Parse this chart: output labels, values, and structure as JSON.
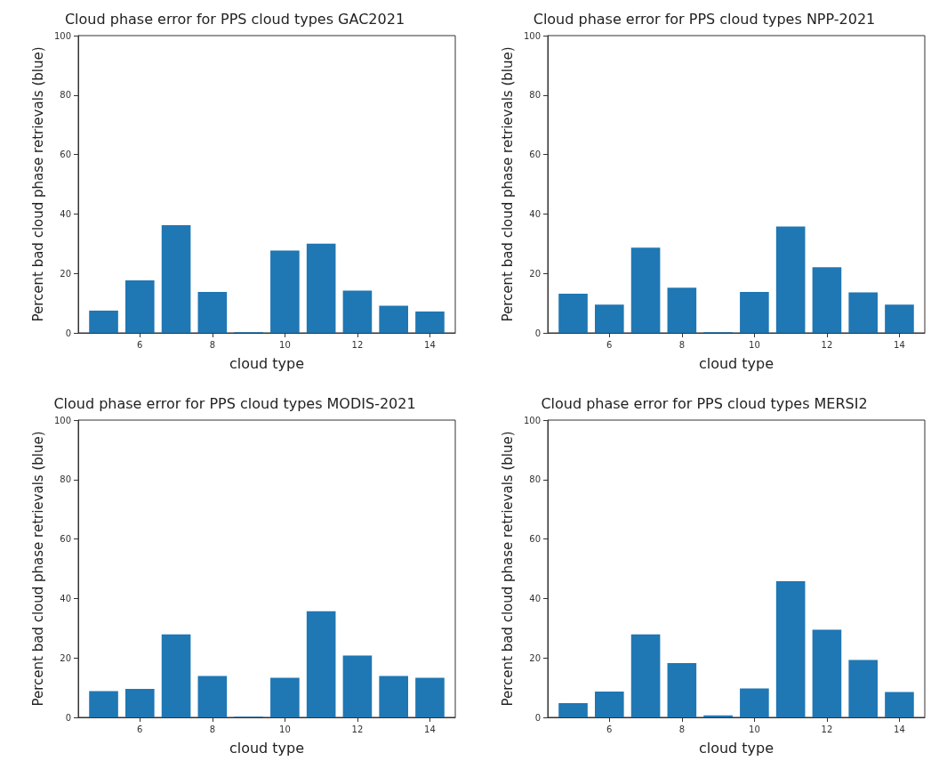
{
  "chart_data": [
    {
      "type": "bar",
      "title": "Cloud phase error for PPS cloud types GAC2021",
      "xlabel": "cloud type",
      "ylabel": "Percent bad cloud phase retrievals (blue)",
      "x": [
        5,
        6,
        7,
        8,
        9,
        10,
        11,
        12,
        13,
        14
      ],
      "values": [
        7.5,
        17.7,
        36.2,
        13.8,
        0.2,
        27.7,
        30,
        14.2,
        9.1,
        7.2
      ],
      "color": "#1f77b4",
      "xlim": [
        4.3,
        14.7
      ],
      "xticks": [
        6,
        8,
        10,
        12,
        14
      ],
      "ylim": [
        0,
        100
      ],
      "yticks": [
        0,
        20,
        40,
        60,
        80,
        100
      ],
      "grid": false
    },
    {
      "type": "bar",
      "title": "Cloud phase error for PPS cloud types NPP-2021",
      "xlabel": "cloud type",
      "ylabel": "Percent bad cloud phase retrievals (blue)",
      "x": [
        5,
        6,
        7,
        8,
        9,
        10,
        11,
        12,
        13,
        14
      ],
      "values": [
        13.2,
        9.5,
        28.7,
        15.2,
        0.2,
        13.8,
        35.8,
        22.1,
        13.6,
        9.5
      ],
      "color": "#1f77b4",
      "xlim": [
        4.3,
        14.7
      ],
      "xticks": [
        6,
        8,
        10,
        12,
        14
      ],
      "ylim": [
        0,
        100
      ],
      "yticks": [
        0,
        20,
        40,
        60,
        80,
        100
      ],
      "grid": false
    },
    {
      "type": "bar",
      "title": "Cloud phase error for PPS cloud types MODIS-2021",
      "xlabel": "cloud type",
      "ylabel": "Percent bad cloud phase retrievals (blue)",
      "x": [
        5,
        6,
        7,
        8,
        9,
        10,
        11,
        12,
        13,
        14
      ],
      "values": [
        8.8,
        9.6,
        27.9,
        13.9,
        0.2,
        13.3,
        35.7,
        20.8,
        13.9,
        13.3
      ],
      "color": "#1f77b4",
      "xlim": [
        4.3,
        14.7
      ],
      "xticks": [
        6,
        8,
        10,
        12,
        14
      ],
      "ylim": [
        0,
        100
      ],
      "yticks": [
        0,
        20,
        40,
        60,
        80,
        100
      ],
      "grid": false
    },
    {
      "type": "bar",
      "title": "Cloud phase error for PPS cloud types MERSI2",
      "xlabel": "cloud type",
      "ylabel": "Percent bad cloud phase retrievals (blue)",
      "x": [
        5,
        6,
        7,
        8,
        9,
        10,
        11,
        12,
        13,
        14
      ],
      "values": [
        4.8,
        8.7,
        27.9,
        18.3,
        0.7,
        9.7,
        45.8,
        29.5,
        19.3,
        8.5
      ],
      "color": "#1f77b4",
      "xlim": [
        4.3,
        14.7
      ],
      "xticks": [
        6,
        8,
        10,
        12,
        14
      ],
      "ylim": [
        0,
        100
      ],
      "yticks": [
        0,
        20,
        40,
        60,
        80,
        100
      ],
      "grid": false
    }
  ]
}
